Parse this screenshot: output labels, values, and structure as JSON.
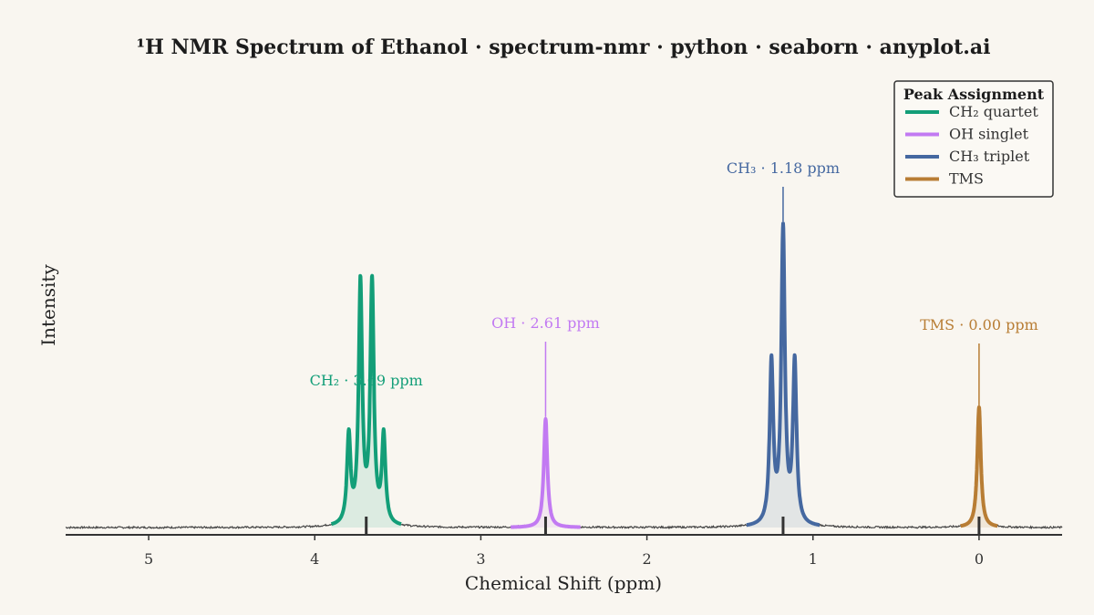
{
  "chart_data": {
    "type": "line",
    "title": "¹H NMR Spectrum of Ethanol · spectrum-nmr · python · seaborn · anyplot.ai",
    "xlabel": "Chemical Shift (ppm)",
    "ylabel": "Intensity",
    "xlim": [
      5.5,
      -0.5
    ],
    "x_reversed": true,
    "ylim": [
      0,
      1.1
    ],
    "x_ticks": [
      5,
      4,
      3,
      2,
      1,
      0
    ],
    "x_tick_labels": [
      "5",
      "4",
      "3",
      "2",
      "1",
      "0"
    ],
    "grid": false,
    "legend": {
      "title": "Peak Assignment",
      "placement": "top-right",
      "entries": [
        "CH₂ quartet",
        "OH singlet",
        "CH₃ triplet",
        "TMS"
      ]
    },
    "series": [
      {
        "name": "CH₂ quartet",
        "color": "#139e78",
        "center": 3.69,
        "lines": [
          {
            "x": 3.795,
            "y": 0.3
          },
          {
            "x": 3.725,
            "y": 0.82
          },
          {
            "x": 3.655,
            "y": 0.82
          },
          {
            "x": 3.585,
            "y": 0.3
          }
        ],
        "range": [
          3.48,
          3.9
        ]
      },
      {
        "name": "OH singlet",
        "color": "#c27af2",
        "center": 2.61,
        "lines": [
          {
            "x": 2.61,
            "y": 0.37
          }
        ],
        "range": [
          2.4,
          2.82
        ]
      },
      {
        "name": "CH₃ triplet",
        "color": "#4568a0",
        "center": 1.18,
        "lines": [
          {
            "x": 1.25,
            "y": 0.55
          },
          {
            "x": 1.18,
            "y": 1.0
          },
          {
            "x": 1.11,
            "y": 0.55
          }
        ],
        "range": [
          0.96,
          1.4
        ]
      },
      {
        "name": "TMS",
        "color": "#b87d34",
        "center": 0.0,
        "lines": [
          {
            "x": 0.0,
            "y": 0.41
          }
        ],
        "range": [
          -0.11,
          0.11
        ]
      }
    ],
    "annotations": [
      {
        "text": "CH₂ · 3.69 ppm",
        "series": 0
      },
      {
        "text": "OH · 2.61 ppm",
        "series": 1
      },
      {
        "text": "CH₃ · 1.18 ppm",
        "series": 2
      },
      {
        "text": "TMS · 0.00 ppm",
        "series": 3
      }
    ]
  }
}
